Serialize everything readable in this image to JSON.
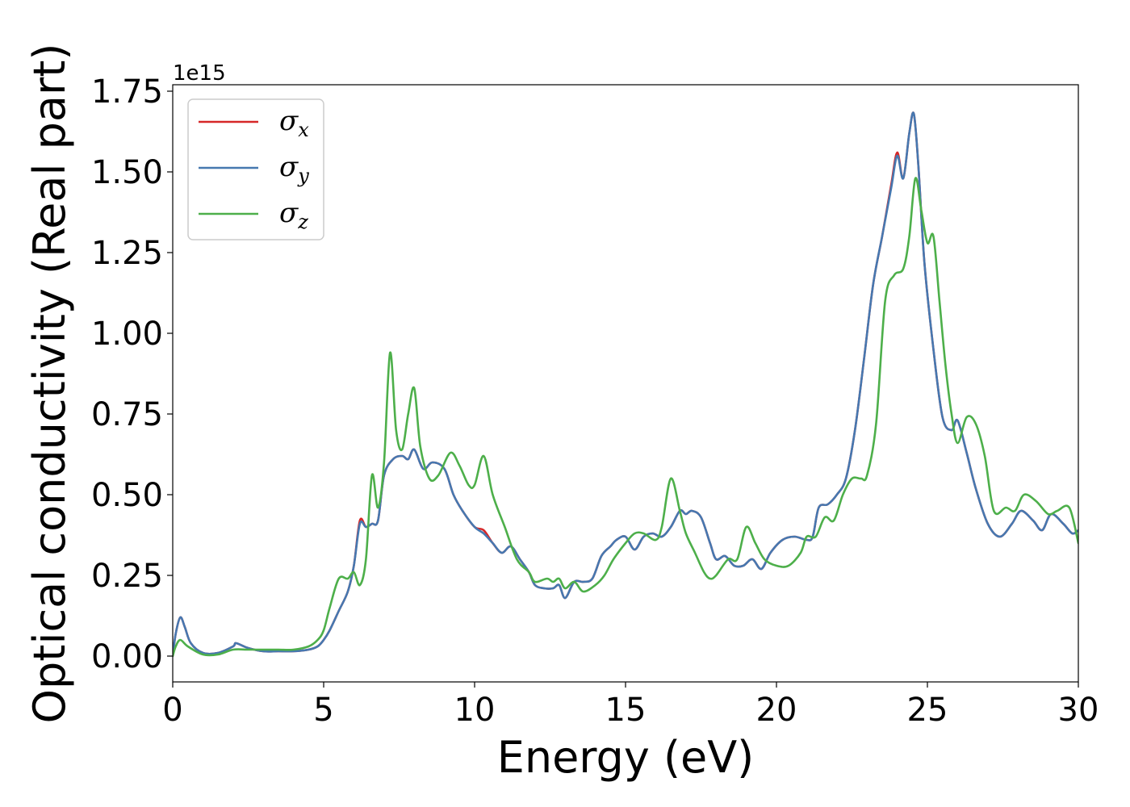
{
  "chart_data": {
    "type": "line",
    "xlabel": "Energy (eV)",
    "ylabel": "Optical conductivity (Real part)",
    "y_offset_label": "1e15",
    "xlim": [
      0,
      30
    ],
    "ylim": [
      -0.08,
      1.77
    ],
    "x_ticks": [
      0,
      5,
      10,
      15,
      20,
      25,
      30
    ],
    "x_tick_labels": [
      "0",
      "5",
      "10",
      "15",
      "20",
      "25",
      "30"
    ],
    "y_ticks": [
      0,
      0.25,
      0.5,
      0.75,
      1.0,
      1.25,
      1.5,
      1.75
    ],
    "y_tick_labels": [
      "0.00",
      "0.25",
      "0.50",
      "0.75",
      "1.00",
      "1.25",
      "1.50",
      "1.75"
    ],
    "grid": false,
    "legend_position": "top-left",
    "series": [
      {
        "name": "σx",
        "legend_symbol": "σ",
        "legend_subscript": "x",
        "color": "#d62728",
        "x": [
          0,
          0.1,
          0.25,
          0.4,
          0.6,
          1.0,
          1.5,
          2.0,
          2.1,
          2.5,
          3.0,
          3.5,
          4.0,
          4.5,
          4.8,
          5.0,
          5.2,
          5.5,
          5.8,
          6.0,
          6.2,
          6.4,
          6.6,
          6.8,
          7.0,
          7.3,
          7.6,
          7.8,
          8.0,
          8.3,
          8.6,
          9.0,
          9.3,
          9.6,
          10.0,
          10.3,
          10.6,
          10.9,
          11.2,
          11.5,
          11.8,
          12.0,
          12.3,
          12.6,
          12.8,
          13.0,
          13.3,
          13.6,
          13.9,
          14.2,
          14.5,
          14.7,
          15.0,
          15.3,
          15.6,
          15.9,
          16.2,
          16.5,
          16.8,
          17.0,
          17.2,
          17.5,
          17.8,
          18.0,
          18.3,
          18.6,
          18.9,
          19.2,
          19.5,
          19.8,
          20.2,
          20.6,
          21.0,
          21.2,
          21.4,
          21.7,
          22.0,
          22.3,
          22.6,
          22.9,
          23.2,
          23.5,
          23.8,
          24.0,
          24.2,
          24.4,
          24.55,
          24.7,
          24.9,
          25.2,
          25.5,
          25.8,
          26.0,
          26.3,
          26.6,
          27.0,
          27.4,
          27.8,
          28.1,
          28.5,
          28.8,
          29.1,
          29.5,
          29.8,
          30.0
        ],
        "values": [
          0.0,
          0.07,
          0.12,
          0.09,
          0.04,
          0.01,
          0.01,
          0.03,
          0.04,
          0.025,
          0.015,
          0.015,
          0.015,
          0.02,
          0.03,
          0.05,
          0.08,
          0.14,
          0.2,
          0.28,
          0.42,
          0.4,
          0.41,
          0.42,
          0.56,
          0.61,
          0.62,
          0.61,
          0.64,
          0.58,
          0.6,
          0.58,
          0.5,
          0.45,
          0.4,
          0.39,
          0.35,
          0.32,
          0.34,
          0.3,
          0.26,
          0.22,
          0.21,
          0.21,
          0.22,
          0.18,
          0.23,
          0.23,
          0.24,
          0.31,
          0.34,
          0.36,
          0.37,
          0.33,
          0.37,
          0.38,
          0.37,
          0.4,
          0.45,
          0.44,
          0.45,
          0.43,
          0.35,
          0.3,
          0.31,
          0.28,
          0.28,
          0.3,
          0.27,
          0.32,
          0.36,
          0.37,
          0.36,
          0.37,
          0.46,
          0.47,
          0.5,
          0.55,
          0.7,
          0.92,
          1.15,
          1.3,
          1.46,
          1.56,
          1.48,
          1.62,
          1.68,
          1.52,
          1.22,
          0.95,
          0.74,
          0.7,
          0.73,
          0.63,
          0.52,
          0.41,
          0.37,
          0.41,
          0.45,
          0.42,
          0.39,
          0.44,
          0.41,
          0.38,
          0.39
        ]
      },
      {
        "name": "σy",
        "legend_symbol": "σ",
        "legend_subscript": "y",
        "color": "#4678b0",
        "x": [
          0,
          0.1,
          0.25,
          0.4,
          0.6,
          1.0,
          1.5,
          2.0,
          2.1,
          2.5,
          3.0,
          3.5,
          4.0,
          4.5,
          4.8,
          5.0,
          5.2,
          5.5,
          5.8,
          6.0,
          6.2,
          6.4,
          6.6,
          6.8,
          7.0,
          7.3,
          7.6,
          7.8,
          8.0,
          8.3,
          8.6,
          9.0,
          9.3,
          9.6,
          10.0,
          10.3,
          10.6,
          10.9,
          11.2,
          11.5,
          11.8,
          12.0,
          12.3,
          12.6,
          12.8,
          13.0,
          13.3,
          13.6,
          13.9,
          14.2,
          14.5,
          14.7,
          15.0,
          15.3,
          15.6,
          15.9,
          16.2,
          16.5,
          16.8,
          17.0,
          17.2,
          17.5,
          17.8,
          18.0,
          18.3,
          18.6,
          18.9,
          19.2,
          19.5,
          19.8,
          20.2,
          20.6,
          21.0,
          21.2,
          21.4,
          21.7,
          22.0,
          22.3,
          22.6,
          22.9,
          23.2,
          23.5,
          23.8,
          24.0,
          24.2,
          24.4,
          24.55,
          24.7,
          24.9,
          25.2,
          25.5,
          25.8,
          26.0,
          26.3,
          26.6,
          27.0,
          27.4,
          27.8,
          28.1,
          28.5,
          28.8,
          29.1,
          29.5,
          29.8,
          30.0
        ],
        "values": [
          0.0,
          0.07,
          0.12,
          0.09,
          0.04,
          0.01,
          0.01,
          0.03,
          0.04,
          0.025,
          0.015,
          0.015,
          0.015,
          0.02,
          0.03,
          0.05,
          0.08,
          0.14,
          0.2,
          0.28,
          0.41,
          0.4,
          0.41,
          0.42,
          0.56,
          0.61,
          0.62,
          0.61,
          0.64,
          0.58,
          0.6,
          0.58,
          0.5,
          0.45,
          0.4,
          0.38,
          0.35,
          0.32,
          0.34,
          0.3,
          0.26,
          0.22,
          0.21,
          0.21,
          0.22,
          0.18,
          0.23,
          0.23,
          0.24,
          0.31,
          0.34,
          0.36,
          0.37,
          0.33,
          0.37,
          0.38,
          0.37,
          0.4,
          0.45,
          0.44,
          0.45,
          0.43,
          0.35,
          0.3,
          0.31,
          0.28,
          0.28,
          0.3,
          0.27,
          0.32,
          0.36,
          0.37,
          0.36,
          0.37,
          0.46,
          0.47,
          0.5,
          0.55,
          0.7,
          0.92,
          1.15,
          1.3,
          1.45,
          1.55,
          1.48,
          1.62,
          1.68,
          1.52,
          1.22,
          0.95,
          0.74,
          0.7,
          0.73,
          0.63,
          0.52,
          0.41,
          0.37,
          0.41,
          0.45,
          0.42,
          0.39,
          0.44,
          0.41,
          0.38,
          0.39
        ]
      },
      {
        "name": "σz",
        "legend_symbol": "σ",
        "legend_subscript": "z",
        "color": "#4daf4a",
        "x": [
          0,
          0.1,
          0.25,
          0.5,
          1.0,
          1.5,
          2.0,
          2.5,
          3.0,
          3.5,
          4.0,
          4.5,
          4.8,
          5.0,
          5.2,
          5.5,
          5.8,
          6.0,
          6.2,
          6.4,
          6.6,
          6.8,
          7.0,
          7.2,
          7.4,
          7.6,
          7.8,
          8.0,
          8.2,
          8.5,
          8.8,
          9.2,
          9.5,
          9.8,
          10.0,
          10.3,
          10.6,
          11.0,
          11.4,
          11.8,
          12.0,
          12.4,
          12.6,
          12.8,
          13.0,
          13.3,
          13.6,
          14.0,
          14.3,
          14.6,
          15.0,
          15.3,
          15.6,
          16.0,
          16.2,
          16.5,
          16.8,
          17.0,
          17.3,
          17.6,
          17.8,
          18.0,
          18.4,
          18.7,
          19.0,
          19.3,
          19.6,
          20.0,
          20.4,
          20.8,
          21.0,
          21.3,
          21.6,
          21.9,
          22.2,
          22.5,
          22.8,
          23.0,
          23.3,
          23.6,
          23.9,
          24.2,
          24.4,
          24.6,
          24.8,
          25.0,
          25.2,
          25.4,
          25.6,
          25.8,
          26.0,
          26.3,
          26.6,
          26.9,
          27.2,
          27.6,
          27.9,
          28.2,
          28.6,
          29.0,
          29.3,
          29.7,
          30.0
        ],
        "values": [
          0.0,
          0.03,
          0.05,
          0.03,
          0.005,
          0.005,
          0.02,
          0.02,
          0.02,
          0.02,
          0.02,
          0.03,
          0.05,
          0.08,
          0.15,
          0.24,
          0.24,
          0.26,
          0.22,
          0.3,
          0.56,
          0.46,
          0.6,
          0.94,
          0.7,
          0.64,
          0.75,
          0.83,
          0.65,
          0.55,
          0.56,
          0.63,
          0.59,
          0.53,
          0.53,
          0.62,
          0.5,
          0.4,
          0.3,
          0.26,
          0.23,
          0.24,
          0.23,
          0.24,
          0.21,
          0.23,
          0.2,
          0.22,
          0.25,
          0.3,
          0.35,
          0.38,
          0.38,
          0.36,
          0.4,
          0.55,
          0.45,
          0.38,
          0.32,
          0.26,
          0.24,
          0.25,
          0.3,
          0.3,
          0.4,
          0.35,
          0.3,
          0.28,
          0.28,
          0.32,
          0.37,
          0.37,
          0.43,
          0.42,
          0.5,
          0.55,
          0.55,
          0.56,
          0.72,
          1.1,
          1.18,
          1.2,
          1.3,
          1.48,
          1.38,
          1.28,
          1.3,
          1.1,
          0.9,
          0.75,
          0.66,
          0.74,
          0.72,
          0.62,
          0.45,
          0.46,
          0.45,
          0.5,
          0.48,
          0.44,
          0.45,
          0.46,
          0.35
        ]
      }
    ]
  }
}
